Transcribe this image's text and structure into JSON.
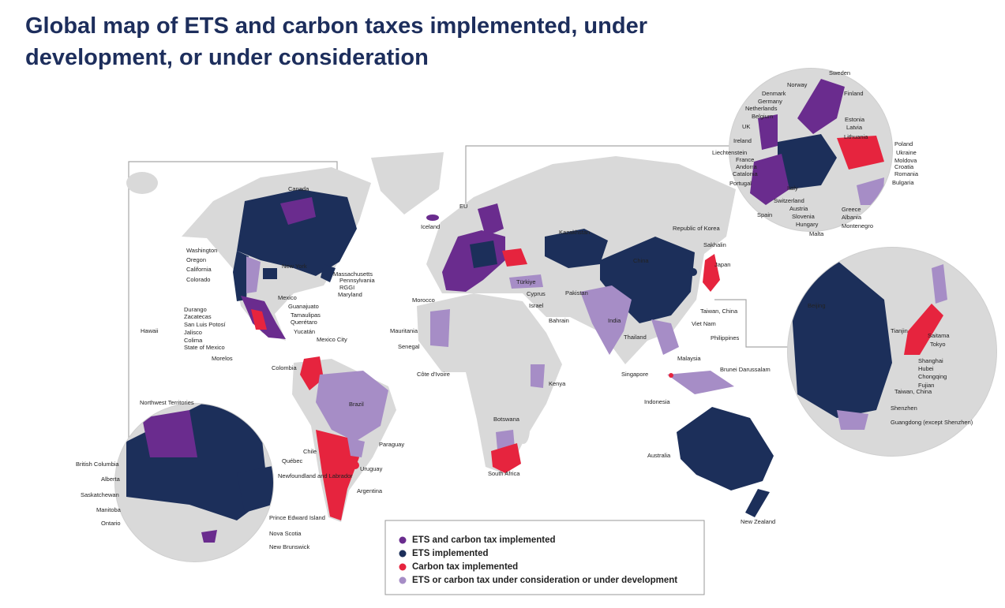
{
  "title": [
    "Global map of ETS and carbon taxes implemented, under",
    "development, or under consideration"
  ],
  "legend": [
    {
      "label": "ETS and carbon tax implemented",
      "color": "#6a2c8e"
    },
    {
      "label": "ETS implemented",
      "color": "#1c2f5a"
    },
    {
      "label": "Carbon tax implemented",
      "color": "#e6243e"
    },
    {
      "label": "ETS or carbon tax under consideration or under development",
      "color": "#a68dc6"
    }
  ],
  "land_color": "#d9d9d9",
  "labels": {
    "main": [
      "Canada",
      "Washington",
      "Oregon",
      "California",
      "Colorado",
      "New York",
      "Massachusetts",
      "Pennsylvania",
      "RGGI",
      "Maryland",
      "Mexico",
      "Guanajuato",
      "Tamaulipas",
      "Querétaro",
      "Durango",
      "Zacatecas",
      "San Luis Potosí",
      "Jalisco",
      "Colima",
      "State of Mexico",
      "Morelos",
      "Yucatán",
      "Mexico City",
      "Hawaii",
      "Colombia",
      "Brazil",
      "Chile",
      "Paraguay",
      "Uruguay",
      "Argentina",
      "EU",
      "Iceland",
      "Kazakhstan",
      "China",
      "Republic of Korea",
      "Sakhalin",
      "Japan",
      "Türkiye",
      "Cyprus",
      "Israel",
      "Morocco",
      "Pakistan",
      "Bahrain",
      "India",
      "Taiwan, China",
      "Viet Nam",
      "Thailand",
      "Philippines",
      "Mauritania",
      "Senegal",
      "Malaysia",
      "Brunei Darussalam",
      "Singapore",
      "Côte d'Ivoire",
      "Kenya",
      "Indonesia",
      "Botswana",
      "South Africa",
      "Australia",
      "New Zealand"
    ],
    "north_america_inset": [
      "Northwest Territories",
      "British Columbia",
      "Alberta",
      "Saskatchewan",
      "Manitoba",
      "Ontario",
      "Québec",
      "Newfoundland and Labrador",
      "Prince Edward Island",
      "Nova Scotia",
      "New Brunswick"
    ],
    "europe_inset": [
      "Sweden",
      "Norway",
      "Finland",
      "Denmark",
      "Germany",
      "Netherlands",
      "Belgium",
      "UK",
      "Estonia",
      "Latvia",
      "Lithuania",
      "Ireland",
      "Poland",
      "Liechtenstein",
      "Ukraine",
      "France",
      "Moldova",
      "Andorra",
      "Croatia",
      "Catalonia",
      "Romania",
      "Portugal",
      "Bulgaria",
      "Italy",
      "Switzerland",
      "Greece",
      "Austria",
      "Albania",
      "Spain",
      "Slovenia",
      "Hungary",
      "Montenegro",
      "Malta"
    ],
    "asia_inset": [
      "Beijing",
      "Tianjin",
      "Saitama",
      "Tokyo",
      "Shanghai",
      "Hubei",
      "Chongqing",
      "Fujian",
      "Taiwan, China",
      "Shenzhen",
      "Guangdong (except Shenzhen)"
    ]
  }
}
